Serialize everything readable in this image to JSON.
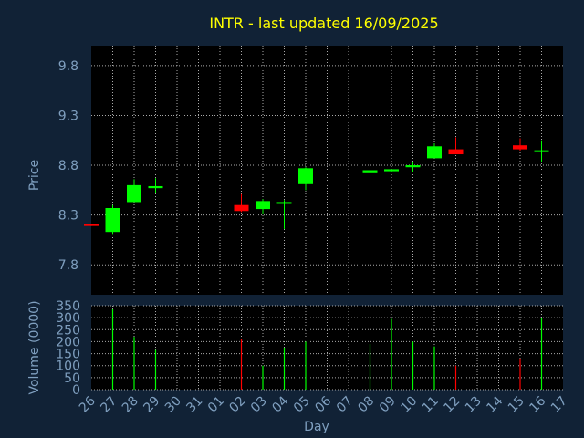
{
  "colors": {
    "background": "#112236",
    "plot_background": "#000000",
    "title": "#ffff00",
    "axis_text": "#7f9fbf",
    "grid": "#aaaaaa",
    "up": "#00ff00",
    "down": "#ff0000"
  },
  "chart_data": {
    "type": "candlestick",
    "title": "INTR - last updated 16/09/2025",
    "price_panel": {
      "ylabel": "Price",
      "ylim": [
        7.5,
        10.0
      ],
      "yticks": [
        "7.8",
        "8.3",
        "8.8",
        "9.3",
        "9.8"
      ],
      "grid": true
    },
    "volume_panel": {
      "ylabel": "Volume (0000)",
      "ylim": [
        0,
        350
      ],
      "yticks": [
        "0",
        "50",
        "100",
        "150",
        "200",
        "250",
        "300",
        "350"
      ],
      "grid": true
    },
    "xlabel": "Day",
    "x_ticks": [
      "26",
      "27",
      "28",
      "29",
      "30",
      "31",
      "01",
      "02",
      "03",
      "04",
      "05",
      "06",
      "07",
      "08",
      "09",
      "10",
      "11",
      "12",
      "13",
      "14",
      "15",
      "16",
      "17"
    ],
    "candles": [
      {
        "x": "26",
        "open": 8.21,
        "high": 8.21,
        "low": 8.19,
        "close": 8.19,
        "volume": 0
      },
      {
        "x": "27",
        "open": 8.13,
        "high": 8.4,
        "low": 8.11,
        "close": 8.37,
        "volume": 335
      },
      {
        "x": "28",
        "open": 8.43,
        "high": 8.66,
        "low": 8.43,
        "close": 8.6,
        "volume": 220
      },
      {
        "x": "29",
        "open": 8.57,
        "high": 8.67,
        "low": 8.52,
        "close": 8.59,
        "volume": 165
      },
      {
        "x": "02",
        "open": 8.4,
        "high": 8.51,
        "low": 8.33,
        "close": 8.34,
        "volume": 210
      },
      {
        "x": "03",
        "open": 8.36,
        "high": 8.46,
        "low": 8.31,
        "close": 8.44,
        "volume": 100
      },
      {
        "x": "04",
        "open": 8.42,
        "high": 8.45,
        "low": 8.16,
        "close": 8.43,
        "volume": 175
      },
      {
        "x": "05",
        "open": 8.61,
        "high": 8.78,
        "low": 8.55,
        "close": 8.77,
        "volume": 200
      },
      {
        "x": "08",
        "open": 8.72,
        "high": 8.77,
        "low": 8.56,
        "close": 8.75,
        "volume": 190
      },
      {
        "x": "09",
        "open": 8.74,
        "high": 8.76,
        "low": 8.73,
        "close": 8.76,
        "volume": 295
      },
      {
        "x": "10",
        "open": 8.78,
        "high": 8.83,
        "low": 8.73,
        "close": 8.8,
        "volume": 200
      },
      {
        "x": "11",
        "open": 8.87,
        "high": 9.02,
        "low": 8.87,
        "close": 8.99,
        "volume": 180
      },
      {
        "x": "12",
        "open": 8.96,
        "high": 9.08,
        "low": 8.91,
        "close": 8.91,
        "volume": 100
      },
      {
        "x": "15",
        "open": 9.0,
        "high": 9.07,
        "low": 8.94,
        "close": 8.96,
        "volume": 130
      },
      {
        "x": "16",
        "open": 8.95,
        "high": 9.05,
        "low": 8.83,
        "close": 8.95,
        "volume": 300
      }
    ]
  }
}
